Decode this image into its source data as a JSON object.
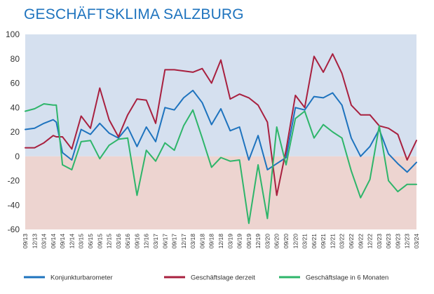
{
  "title": "GESCHÄFTSKLIMA SALZBURG",
  "colors": {
    "title": "#1e73be",
    "positive_band": "#d5e0ef",
    "negative_band": "#edd4d0"
  },
  "chart_data": {
    "type": "line",
    "title": "GESCHÄFTSKLIMA SALZBURG",
    "xlabel": "",
    "ylabel": "",
    "ylim": [
      -60,
      100
    ],
    "yticks": [
      "100",
      "80",
      "60",
      "40",
      "20",
      "0",
      "-20",
      "-40",
      "-60"
    ],
    "grid": false,
    "legend_position": "bottom",
    "background_bands": [
      {
        "from": 0,
        "to": 100,
        "color": "#d5e0ef"
      },
      {
        "from": -60,
        "to": 0,
        "color": "#edd4d0"
      }
    ],
    "x": [
      "09/13",
      "12/13",
      "03/14",
      "06/14",
      "09/14",
      "12/14",
      "03/15",
      "06/15",
      "09/15",
      "12/15",
      "03/16",
      "06/16",
      "09/16",
      "12/16",
      "03/17",
      "06/17",
      "09/17",
      "12/17",
      "03/18",
      "06/18",
      "09/18",
      "12/18",
      "03/19",
      "06/19",
      "09/19",
      "12/19",
      "03/20",
      "06/20",
      "09/20",
      "12/20",
      "03/21",
      "06/21",
      "09/21",
      "12/21",
      "03/22",
      "06/22",
      "09/22",
      "12/22",
      "03/23",
      "06/23",
      "09/23",
      "12/23",
      "03/24"
    ],
    "x_tick_labels": [
      "09/13",
      "12/13",
      "03/14",
      "06/14",
      "09/14",
      "12/14",
      "03/15",
      "06/15",
      "09/15",
      "12/15",
      "03/16",
      "06/16",
      "09/16",
      "12/16",
      "03/17",
      "06/17",
      "09/17",
      "12/17",
      "03/18",
      "06/18",
      "09/18",
      "12/18",
      "03/19",
      "06/19",
      "09/19",
      "12/19",
      "03/20",
      "06/20",
      "09/20",
      "12/20",
      "03/21",
      "06/21",
      "09/21",
      "12/21",
      "03/22",
      "06/22",
      "09/22",
      "12/22",
      "03/23",
      "06/23",
      "09/23",
      "12/23",
      "03/24"
    ],
    "series": [
      {
        "name": "Konjunkturbarometer",
        "color": "#1e73be",
        "x": [
          "09/13",
          "12/13",
          "03/14",
          "06/14",
          "07/14",
          "09/14",
          "12/14",
          "03/15",
          "06/15",
          "09/15",
          "12/15",
          "03/16",
          "06/16",
          "09/16",
          "12/16",
          "03/17",
          "06/17",
          "09/17",
          "12/17",
          "03/18",
          "06/18",
          "09/18",
          "12/18",
          "03/19",
          "06/19",
          "09/19",
          "12/19",
          "03/20",
          "06/20",
          "09/20",
          "12/20",
          "03/21",
          "06/21",
          "09/21",
          "12/21",
          "03/22",
          "06/22",
          "09/22",
          "12/22",
          "03/23",
          "06/23",
          "09/23",
          "12/23",
          "03/24"
        ],
        "values": [
          22,
          23,
          27,
          30,
          28,
          3,
          -3,
          22,
          18,
          27,
          19,
          15,
          24,
          8,
          24,
          12,
          40,
          38,
          48,
          54,
          44,
          26,
          39,
          21,
          24,
          -3,
          17,
          -11,
          -6,
          -1,
          40,
          38,
          49,
          48,
          52,
          42,
          15,
          0,
          8,
          22,
          2,
          -6,
          -13,
          -5
        ]
      },
      {
        "name": "Geschäftslage derzeit",
        "color": "#a8203f",
        "x": [
          "09/13",
          "12/13",
          "03/14",
          "06/14",
          "07/14",
          "09/14",
          "12/14",
          "03/15",
          "06/15",
          "09/15",
          "12/15",
          "03/16",
          "06/16",
          "09/16",
          "12/16",
          "03/17",
          "06/17",
          "09/17",
          "12/17",
          "03/18",
          "06/18",
          "09/18",
          "12/18",
          "03/19",
          "06/19",
          "09/19",
          "12/19",
          "03/20",
          "06/20",
          "09/20",
          "12/20",
          "03/21",
          "06/21",
          "09/21",
          "12/21",
          "03/22",
          "06/22",
          "09/22",
          "12/22",
          "03/23",
          "06/23",
          "09/23",
          "12/23",
          "03/24"
        ],
        "values": [
          7,
          7,
          11,
          17,
          16,
          16,
          6,
          33,
          23,
          56,
          30,
          16,
          34,
          47,
          46,
          27,
          71,
          71,
          70,
          69,
          72,
          60,
          79,
          47,
          51,
          48,
          42,
          28,
          -32,
          5,
          50,
          40,
          82,
          69,
          84,
          68,
          42,
          34,
          34,
          25,
          23,
          18,
          -3,
          13
        ]
      },
      {
        "name": "Geschäftslage in 6 Monaten",
        "color": "#2eb56a",
        "x": [
          "09/13",
          "12/13",
          "03/14",
          "06/14",
          "07/14",
          "09/14",
          "12/14",
          "03/15",
          "06/15",
          "09/15",
          "12/15",
          "03/16",
          "06/16",
          "09/16",
          "12/16",
          "03/17",
          "06/17",
          "09/17",
          "12/17",
          "03/18",
          "06/18",
          "09/18",
          "12/18",
          "03/19",
          "06/19",
          "09/19",
          "12/19",
          "03/20",
          "06/20",
          "09/20",
          "12/20",
          "03/21",
          "06/21",
          "09/21",
          "12/21",
          "03/22",
          "06/22",
          "09/22",
          "12/22",
          "03/23",
          "06/23",
          "09/23",
          "12/23",
          "03/24"
        ],
        "values": [
          37,
          39,
          43,
          42,
          42,
          -7,
          -11,
          12,
          13,
          -2,
          9,
          14,
          15,
          -32,
          5,
          -4,
          11,
          5,
          25,
          38,
          15,
          -9,
          -1,
          -4,
          -3,
          -55,
          -7,
          -51,
          24,
          -7,
          31,
          37,
          15,
          26,
          20,
          15,
          -12,
          -34,
          -19,
          25,
          -20,
          -29,
          -23,
          -23
        ]
      }
    ]
  }
}
